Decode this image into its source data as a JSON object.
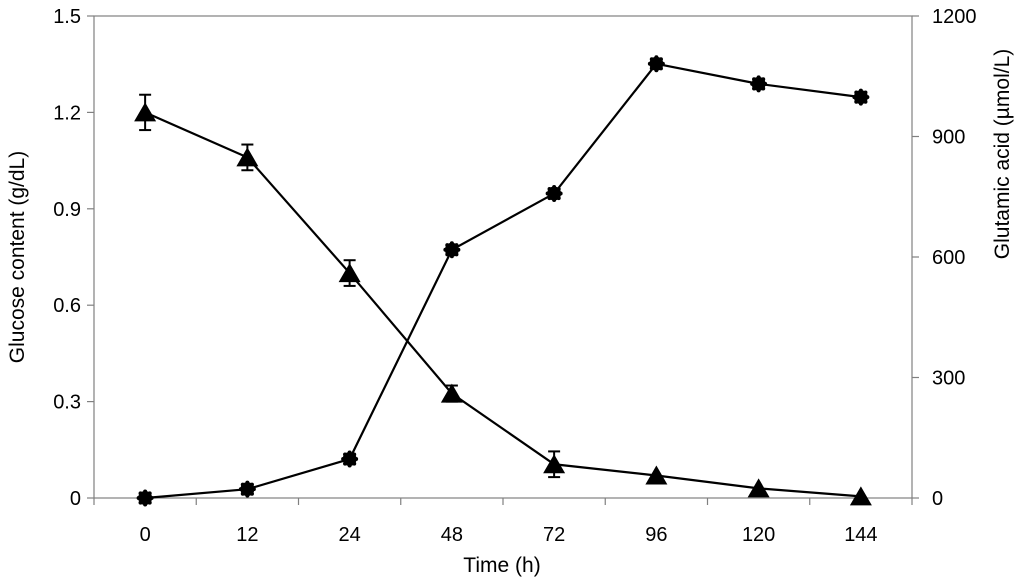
{
  "chart_data": {
    "type": "line",
    "title": "",
    "xlabel": "Time (h)",
    "ylabel_left": "Glucose content (g/dL)",
    "ylabel_right": "Glutamic acid (µmol/L)",
    "categories": [
      "0",
      "12",
      "24",
      "48",
      "72",
      "96",
      "120",
      "144"
    ],
    "ylim_left": [
      0,
      1.5
    ],
    "ylim_right": [
      0,
      1200
    ],
    "yticks_left": [
      "0",
      "0.3",
      "0.6",
      "0.9",
      "1.2",
      "1.5"
    ],
    "yticks_right": [
      "0",
      "300",
      "600",
      "900",
      "1200"
    ],
    "grid": false,
    "legend": "none",
    "series": [
      {
        "axis": "left",
        "marker": "triangle",
        "color": "#000000",
        "values": [
          1.2,
          1.06,
          0.7,
          0.325,
          0.105,
          0.07,
          0.03,
          0.005
        ],
        "error": [
          0.055,
          0.04,
          0.04,
          0.025,
          0.04,
          0.0,
          0.0,
          0.0
        ]
      },
      {
        "axis": "right",
        "marker": "circle",
        "color": "#000000",
        "values": [
          0,
          22,
          97,
          618,
          758,
          1081,
          1031,
          998
        ]
      }
    ]
  }
}
